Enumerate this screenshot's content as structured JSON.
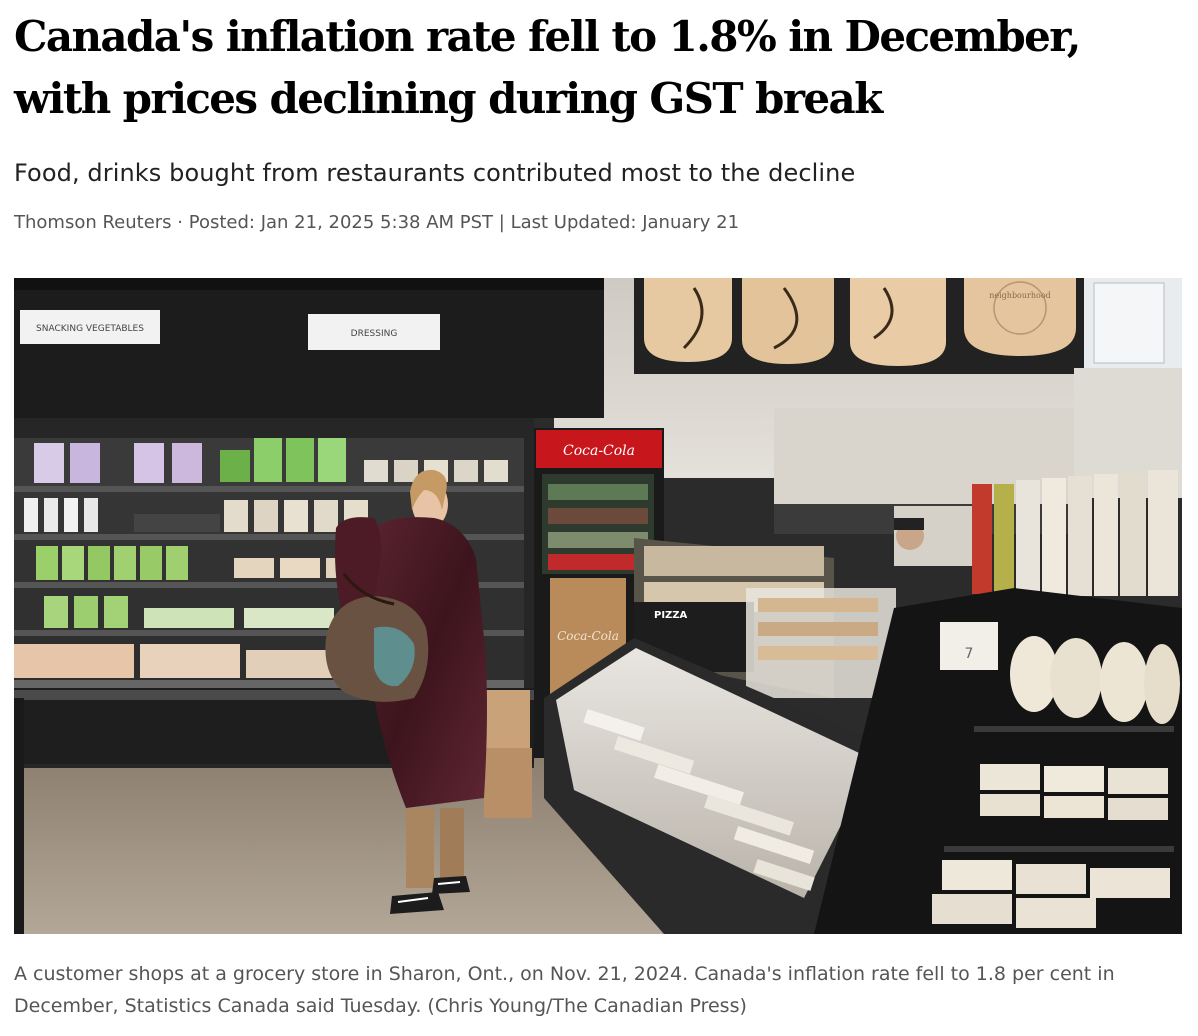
{
  "article": {
    "headline": "Canada's inflation rate fell to 1.8% in December, with prices declining during GST break",
    "subheadline": "Food, drinks bought from restaurants contributed most to the decline",
    "byline": {
      "author": "Thomson Reuters",
      "posted_label": "Posted:",
      "posted_date": "Jan 21, 2025 5:38 AM PST",
      "updated_label": "Last Updated:",
      "updated_date": "January 21"
    },
    "photo": {
      "signs": {
        "snacking": "SNACKING VEGETABLES",
        "dressing": "DRESSING",
        "coca_cola": "Coca-Cola",
        "pizza": "PIZZA",
        "price_tag": "7",
        "neighbourhood": "neighbourhood"
      }
    },
    "caption": "A customer shops at a grocery store in Sharon, Ont., on Nov. 21, 2024. Canada's inflation rate fell to 1.8 per cent in December, Statistics Canada said Tuesday. (Chris Young/The Canadian Press)"
  }
}
